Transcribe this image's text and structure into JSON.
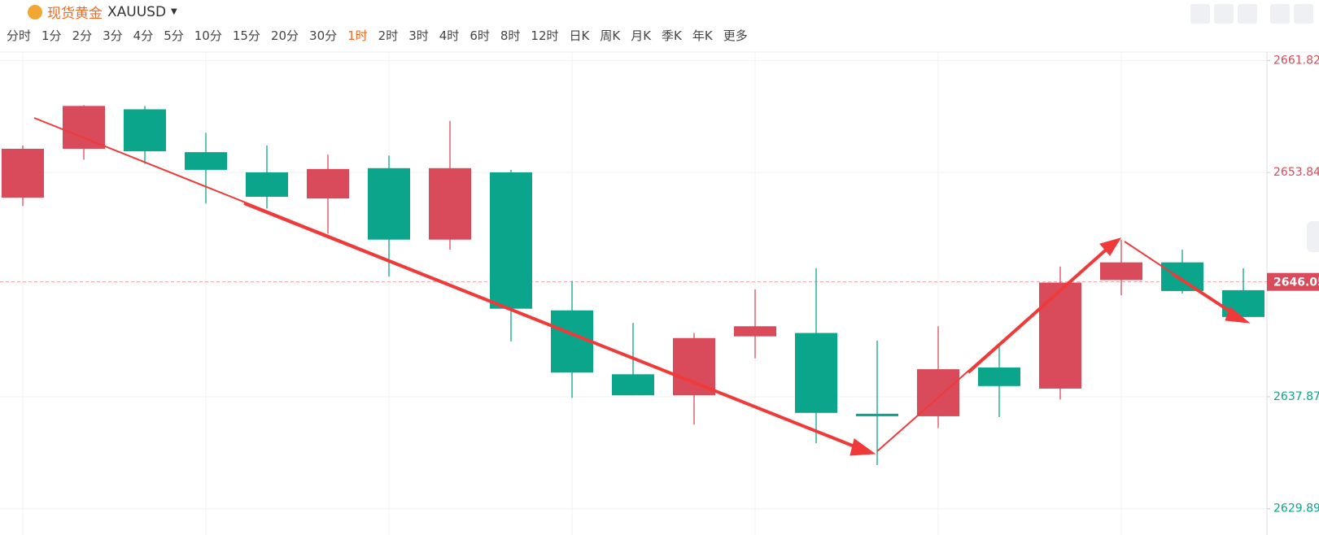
{
  "header": {
    "name": "现货黄金",
    "symbol": "XAUUSD",
    "periods": [
      "分时",
      "1分",
      "2分",
      "3分",
      "4分",
      "5分",
      "10分",
      "15分",
      "20分",
      "30分",
      "1时",
      "2时",
      "3时",
      "4时",
      "6时",
      "8时",
      "12时",
      "日K",
      "周K",
      "月K",
      "季K",
      "年K",
      "更多"
    ],
    "active_period": "1时"
  },
  "chart_data": {
    "type": "candlestick",
    "up_color": "#d94a5a",
    "down_color": "#0aa58a",
    "open": [
      2652.05,
      2655.53,
      2658.34,
      2655.29,
      2653.85,
      2651.99,
      2654.15,
      2649.06,
      2653.85,
      2644.02,
      2639.47,
      2637.97,
      2642.17,
      2642.41,
      2636.66,
      2636.48,
      2639.95,
      2638.45,
      2646.18,
      2647.44,
      2645.46
    ],
    "high": [
      2655.77,
      2658.64,
      2658.58,
      2656.67,
      2655.77,
      2655.11,
      2655.05,
      2657.51,
      2654.03,
      2646.12,
      2643.13,
      2642.41,
      2645.52,
      2647.02,
      2641.87,
      2642.89,
      2641.45,
      2647.14,
      2649.06,
      2648.34,
      2647.02
    ],
    "low": [
      2651.45,
      2654.75,
      2654.45,
      2651.63,
      2651.27,
      2649.48,
      2646.42,
      2648.34,
      2641.81,
      2637.79,
      2637.97,
      2635.88,
      2640.61,
      2634.56,
      2633.0,
      2635.64,
      2636.42,
      2637.67,
      2645.1,
      2645.22,
      2643.55
    ],
    "close": [
      2655.53,
      2658.58,
      2655.35,
      2654.03,
      2652.11,
      2654.09,
      2649.06,
      2654.15,
      2644.14,
      2639.59,
      2637.97,
      2642.05,
      2642.89,
      2636.72,
      2636.48,
      2639.83,
      2638.63,
      2646.0,
      2647.44,
      2645.4,
      2643.55
    ],
    "ylim": [
      2629.47,
      2662.42
    ],
    "yticks": [
      2629.89,
      2637.87,
      2653.84,
      2661.82
    ],
    "last_price": 2646.05,
    "grid": true
  }
}
